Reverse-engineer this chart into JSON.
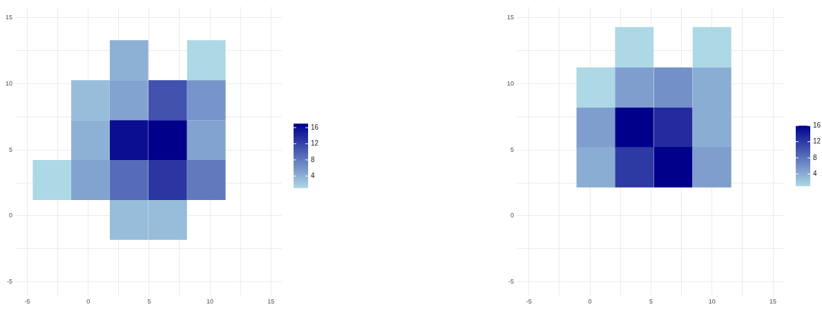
{
  "chart_data": [
    {
      "type": "heatmap",
      "x": [
        -2.98,
        0.18,
        3.35,
        6.53,
        9.7
      ],
      "y": [
        11.77,
        8.75,
        5.73,
        2.71,
        -0.31
      ],
      "cells": [
        [
          null,
          null,
          4,
          null,
          1
        ],
        [
          null,
          3,
          5,
          11,
          6
        ],
        [
          null,
          4,
          16,
          17,
          5
        ],
        [
          1,
          5,
          9,
          13,
          8
        ],
        [
          null,
          null,
          3,
          3,
          null
        ]
      ],
      "colors": [
        "#add8e6",
        "#00008b"
      ],
      "clim": [
        1,
        17
      ],
      "cticks": [
        4,
        8,
        12,
        16
      ],
      "xlim": [
        -6,
        15.9
      ],
      "ylim": [
        -6,
        15.8
      ],
      "xticks": [
        -5,
        {
          "value": -2.5,
          "label": null
        },
        0,
        {
          "value": 2.5,
          "label": null
        },
        5,
        {
          "value": 7.5,
          "label": null
        },
        10,
        {
          "value": 12.5,
          "label": null
        },
        15
      ],
      "yticks": [
        -5,
        {
          "value": -2.5,
          "label": null
        },
        0,
        {
          "value": 2.5,
          "label": null
        },
        5,
        {
          "value": 7.5,
          "label": null
        },
        10,
        {
          "value": 12.5,
          "label": null
        },
        15
      ],
      "grid": true
    },
    {
      "type": "heatmap",
      "x": [
        0.48,
        3.64,
        6.82,
        10.0
      ],
      "y": [
        12.75,
        9.7,
        6.66,
        3.68
      ],
      "cells": [
        [
          null,
          1,
          null,
          1
        ],
        [
          1,
          5,
          6,
          4
        ],
        [
          5,
          16,
          13,
          4
        ],
        [
          4,
          12,
          16,
          5
        ]
      ],
      "colors": [
        "#add8e6",
        "#00008b"
      ],
      "clim": [
        1,
        16
      ],
      "cticks": [
        4,
        8,
        12,
        16
      ],
      "xlim": [
        -6,
        15.9
      ],
      "ylim": [
        -6,
        15.8
      ],
      "xticks": [
        -5,
        {
          "value": -2.5,
          "label": null
        },
        0,
        {
          "value": 2.5,
          "label": null
        },
        5,
        {
          "value": 7.5,
          "label": null
        },
        10,
        {
          "value": 12.5,
          "label": null
        },
        15
      ],
      "yticks": [
        -5,
        {
          "value": -2.5,
          "label": null
        },
        0,
        {
          "value": 2.5,
          "label": null
        },
        5,
        {
          "value": 7.5,
          "label": null
        },
        10,
        {
          "value": 12.5,
          "label": null
        },
        15
      ],
      "grid": true
    }
  ]
}
